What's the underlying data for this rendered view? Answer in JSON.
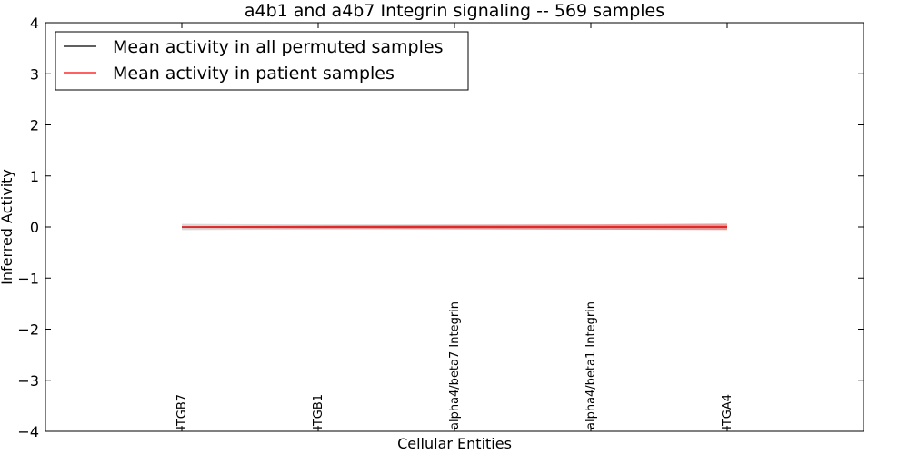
{
  "chart_data": {
    "type": "line",
    "title": "a4b1 and a4b7 Integrin signaling -- 569 samples",
    "xlabel": "Cellular Entities",
    "ylabel": "Inferred Activity",
    "ylim": [
      -4,
      4
    ],
    "yticks": [
      -4,
      -3,
      -2,
      -1,
      0,
      1,
      2,
      3,
      4
    ],
    "ytick_labels": [
      "−4",
      "−3",
      "−2",
      "−1",
      "0",
      "1",
      "2",
      "3",
      "4"
    ],
    "categories": [
      "ITGB7",
      "ITGB1",
      "alpha4/beta7 Integrin",
      "alpha4/beta1 Integrin",
      "ITGA4"
    ],
    "grid": false,
    "legend_position": "top-left",
    "series": [
      {
        "name": "Mean activity in all permuted samples",
        "color": "#000000",
        "values": [
          0.0,
          0.0,
          0.0,
          0.0,
          0.0
        ],
        "band_low": [
          -0.06,
          -0.05,
          -0.05,
          -0.05,
          -0.05
        ],
        "band_high": [
          0.06,
          0.05,
          0.05,
          0.05,
          0.05
        ],
        "band_color": "#808080"
      },
      {
        "name": "Mean activity in patient samples",
        "color": "#ff0000",
        "values": [
          0.0,
          0.0,
          0.0,
          0.0,
          0.0
        ],
        "band_low": [
          -0.02,
          -0.03,
          -0.04,
          -0.05,
          -0.06
        ],
        "band_high": [
          0.01,
          0.03,
          0.04,
          0.05,
          0.07
        ],
        "band_color": "#ff0000"
      }
    ]
  }
}
